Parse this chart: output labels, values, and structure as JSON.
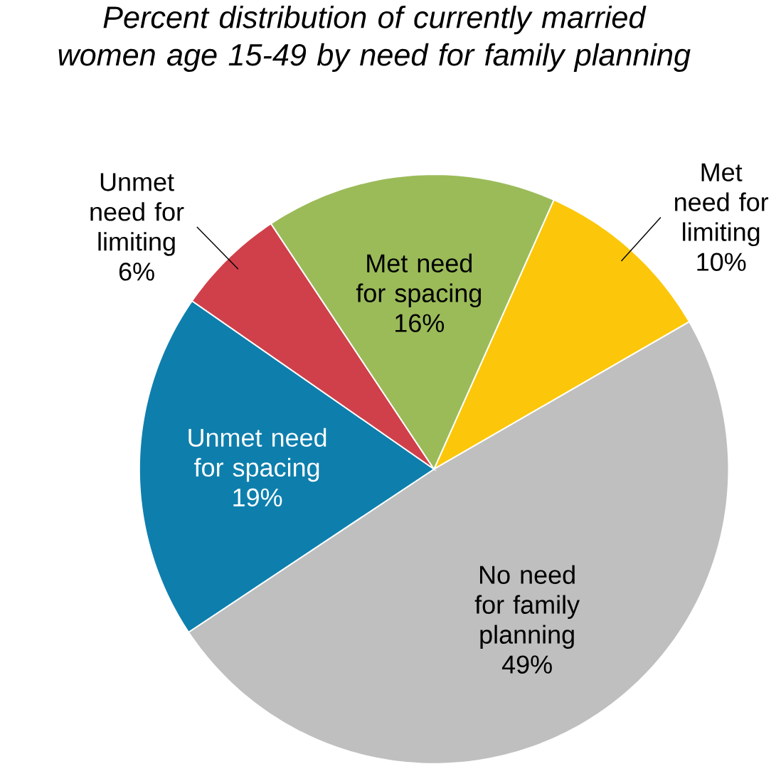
{
  "chart_data": {
    "type": "pie",
    "title": "Percent distribution of currently married women age 15-49 by need for family planning",
    "categories": [
      "Met need for limiting",
      "No need for family planning",
      "Unmet need for spacing",
      "Unmet need for limiting",
      "Met need for spacing"
    ],
    "values": [
      10,
      49,
      19,
      6,
      16
    ],
    "value_labels": [
      "10%",
      "49%",
      "19%",
      "6%",
      "16%"
    ],
    "colors": [
      "#fcc70a",
      "#bfbfbf",
      "#0e7fad",
      "#d0404a",
      "#9bbb59"
    ]
  }
}
